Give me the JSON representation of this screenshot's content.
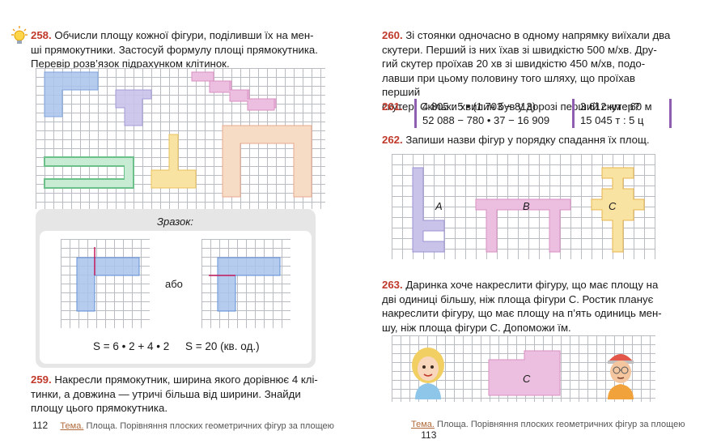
{
  "left_page": {
    "task258": {
      "number": "258.",
      "line1": "Обчисли площу кожної фігури, поділивши їх на мен-",
      "line2": "ші прямокутники. Застосуй формулу площі прямокутника.",
      "line3": "Перевір розв’язок підрахунком клітинок."
    },
    "sample": {
      "title": "Зразок:",
      "or_word": "або",
      "formula1": "S = 6 • 2 + 4 • 2",
      "formula2": "S = 20 (кв. од.)"
    },
    "task259": {
      "number": "259.",
      "line1": "Накресли прямокутник, ширина якого дорівнює 4 клі-",
      "line2": "тинки, а довжина — утричі більша від ширини. Знайди",
      "line3": "площу цього прямокутника."
    },
    "footer": {
      "page_number": "112",
      "topic_label": "Тема.",
      "topic_text": "Площа. Порівняння плоских геометричних фігур за площею"
    }
  },
  "right_page": {
    "task260": {
      "number": "260.",
      "line1": "Зі стоянки одночасно в одному напрямку виїхали два",
      "line2": "скутери. Перший із них їхав зі швидкістю 500 м/хв. Дру-",
      "line3": "гий скутер проїхав 20 хв зі швидкістю 450 м/хв, подо-",
      "line4": "лавши при цьому половину того шляху, що проїхав перший",
      "line5": "скутер. Скільки хвилин був у дорозі перший скутер?"
    },
    "task261": {
      "number": "261.",
      "expr1": "4 805 : 5 • (1 703 − 813)",
      "expr2": "52 088 − 780 • 37 − 16 909",
      "expr3": "3 612 км : 60 м",
      "expr4": "15 045 т : 5 ц"
    },
    "task262": {
      "number": "262.",
      "text": "Запиши назви фігур у порядку спадання їх площ.",
      "labels": [
        "A",
        "B",
        "C"
      ]
    },
    "task263": {
      "number": "263.",
      "line1": "Даринка хоче накреслити фігуру, що має площу на",
      "line2": "дві одиниці більшу, ніж площа фігури С. Ростик планує",
      "line3": "накреслити фігуру, що має площу на п’ять одиниць мен-",
      "line4": "шу, ніж площа фігури С. Допоможи їм.",
      "label": "C"
    },
    "footer": {
      "page_number": "113",
      "topic_label": "Тема.",
      "topic_text": "Площа. Порівняння плоских геометричних фігур за площею"
    }
  },
  "colors": {
    "task_number": "#c0392b",
    "blue_fill": "#a9c3ec",
    "purple_fill": "#c9c3ea",
    "pink_fill": "#ecbfe0",
    "peach_fill": "#f6dcc4",
    "yellow_fill": "#f8e3a3",
    "green_stroke": "#6cc08a",
    "grid_line": "#b9bcc2"
  },
  "icons": {
    "hint": "lightbulb-icon"
  }
}
